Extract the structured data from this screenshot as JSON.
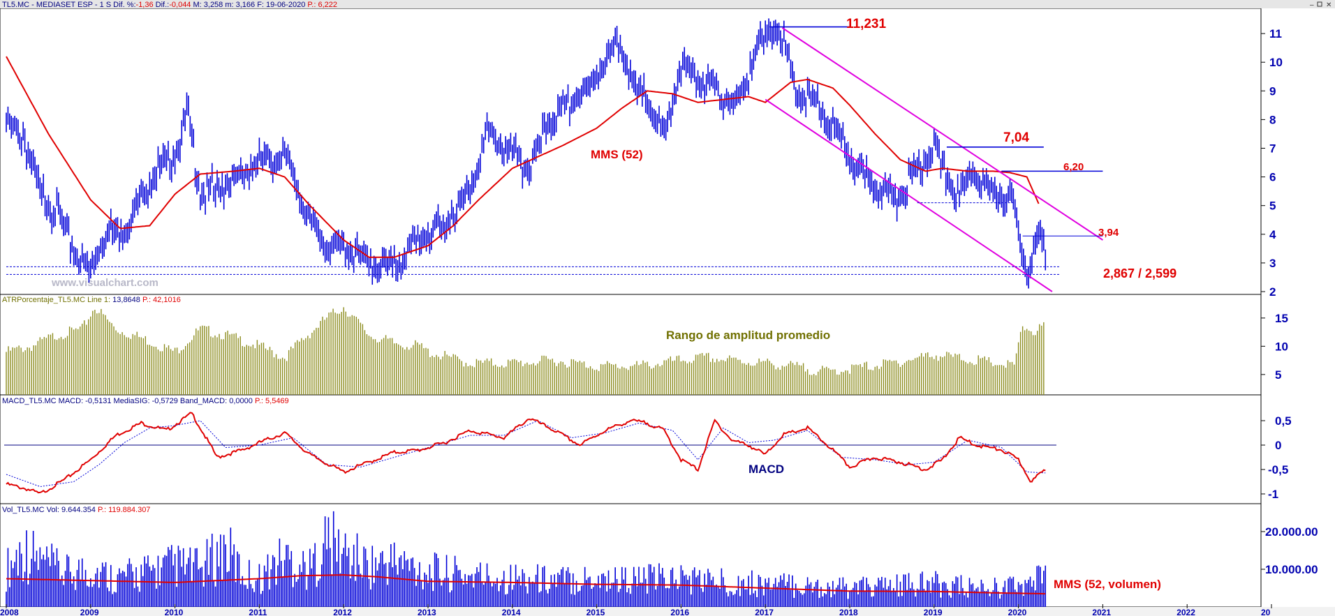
{
  "header": {
    "price": {
      "symbol": "TL5.MC - MEDIASET ESP -  1 S  Dif. %:",
      "dif_pct": "-1,36",
      "dif_label": " Dif.:",
      "dif": "-0,044",
      "rest": " M: 3,258  m: 3,166  F: 19-06-2020 ",
      "p": "P.: 6,222"
    },
    "atr": {
      "label": "ATRPorcentaje_TL5.MC  Line 1:",
      "value": " 13,8648 ",
      "p": "P.: 42,1016"
    },
    "macd": {
      "label": "MACD_TL5.MC  MACD: -0,5131  MediaSIG: -0,5729  Band_MACD: 0,0000 ",
      "p": "P.: 5,5469"
    },
    "vol": {
      "label": "Vol_TL5.MC  Vol: 9.644.354 ",
      "p": "P.: 119.884.307"
    }
  },
  "watermark": "www.visualchart.com",
  "annotations": {
    "high": "11,231",
    "resistance1": "7,04",
    "resistance2": "6,20",
    "resistance3": "3,94",
    "support": "2,867 / 2,599",
    "mms_price": "MMS (52)",
    "atr_title": "Rango de amplitud promedio",
    "macd_title": "MACD",
    "mms_vol": "MMS (52, volumen)"
  },
  "x_axis": {
    "labels": [
      "2008",
      "2009",
      "2010",
      "2011",
      "2012",
      "2013",
      "2014",
      "2015",
      "2016",
      "2017",
      "2018",
      "2019",
      "2020",
      "2021",
      "2022",
      "20"
    ]
  },
  "y_axes": {
    "price": [
      "2",
      "3",
      "4",
      "5",
      "6",
      "7",
      "8",
      "9",
      "10",
      "11"
    ],
    "atr": [
      "5",
      "10",
      "15"
    ],
    "macd": [
      "0,5",
      "0",
      "-0,5",
      "-1"
    ],
    "vol": [
      "10.000.00",
      "20.000.00"
    ]
  },
  "colors": {
    "price": "#0000d8",
    "sma": "#e00000",
    "channel": "#e000e0",
    "atr_bar": "#8c8c1e",
    "atr_fill": "#d6d690",
    "macd": "#e00000",
    "signal": "#0000d8",
    "axis_text": "#0000b0",
    "annotation_red": "#e00000",
    "annotation_olive": "#707000",
    "annotation_navy": "#000080"
  },
  "chart_data": [
    {
      "type": "line",
      "title": "TL5.MC - MEDIASET ESP - 1 S",
      "x_range": [
        2008,
        2023
      ],
      "ylim": [
        2,
        11.5
      ],
      "series": [
        {
          "name": "",
          "x": [
            2008.0,
            2008.2,
            2008.4,
            2008.6,
            2008.8,
            2009.0,
            2009.2,
            2009.4,
            2009.7,
            2010.0,
            2010.15,
            2010.3,
            2010.6,
            2011.0,
            2011.3,
            2011.55,
            2011.8,
            2012.0,
            2012.3,
            2012.6,
            2012.9,
            2013.2,
            2013.5,
            2013.7,
            2014.0,
            2014.2,
            2014.4,
            2014.6,
            2014.9,
            2015.1,
            2015.3,
            2015.45,
            2015.6,
            2015.8,
            2016.0,
            2016.3,
            2016.5,
            2016.7,
            2016.9,
            2017.15,
            2017.25,
            2017.4,
            2017.6,
            2017.8,
            2018.0,
            2018.3,
            2018.6,
            2018.8,
            2019.0,
            2019.15,
            2019.3,
            2019.45,
            2019.6,
            2019.8,
            2019.95,
            2020.0,
            2020.08,
            2020.12,
            2020.2,
            2020.27,
            2020.32
          ],
          "values": [
            7.9,
            7.4,
            5.5,
            4.8,
            3.4,
            2.75,
            4.2,
            4.1,
            5.9,
            6.8,
            8.2,
            5.4,
            5.7,
            6.5,
            6.8,
            4.8,
            3.5,
            3.6,
            3.0,
            2.85,
            3.9,
            4.3,
            5.6,
            7.5,
            6.8,
            6.3,
            7.7,
            8.4,
            9.0,
            10.2,
            10.6,
            9.0,
            8.7,
            7.4,
            9.9,
            9.2,
            8.8,
            8.6,
            10.6,
            11.23,
            10.3,
            8.7,
            8.6,
            7.7,
            6.7,
            5.6,
            5.3,
            6.4,
            7.04,
            6.0,
            5.3,
            6.2,
            5.7,
            5.2,
            5.0,
            4.1,
            3.0,
            2.7,
            3.6,
            3.94,
            3.25
          ]
        },
        {
          "name": "MMS (52)",
          "x": [
            2008.0,
            2008.5,
            2009.0,
            2009.35,
            2009.7,
            2010.0,
            2010.3,
            2010.7,
            2011.0,
            2011.3,
            2011.6,
            2012.0,
            2012.3,
            2012.6,
            2013.0,
            2013.3,
            2013.6,
            2014.0,
            2014.3,
            2014.6,
            2015.0,
            2015.3,
            2015.6,
            2015.9,
            2016.2,
            2016.5,
            2016.8,
            2017.0,
            2017.3,
            2017.5,
            2017.8,
            2018.0,
            2018.3,
            2018.6,
            2018.9,
            2019.1,
            2019.4,
            2019.7,
            2019.9,
            2020.1,
            2020.25
          ],
          "values": [
            10.2,
            7.5,
            5.2,
            4.2,
            4.3,
            5.4,
            6.1,
            6.2,
            6.3,
            6.0,
            5.0,
            3.8,
            3.2,
            3.2,
            3.6,
            4.3,
            5.2,
            6.3,
            6.7,
            7.1,
            7.7,
            8.4,
            9.0,
            8.9,
            8.6,
            8.7,
            8.8,
            8.6,
            9.3,
            9.4,
            9.1,
            8.5,
            7.5,
            6.6,
            6.2,
            6.3,
            6.2,
            6.2,
            6.15,
            6.0,
            5.0
          ]
        }
      ],
      "lines": [
        {
          "name": "11,231",
          "value": 11.231,
          "x": [
            2017.05,
            2018.0
          ]
        },
        {
          "name": "7,04",
          "value": 7.04,
          "x": [
            2019.15,
            2020.3
          ]
        },
        {
          "name": "6,20",
          "value": 6.2,
          "x": [
            2019.8,
            2021.0
          ]
        },
        {
          "name": "3,94",
          "value": 3.94,
          "x": [
            2020.05,
            2021.0
          ]
        },
        {
          "name": "2,867",
          "value": 2.867,
          "x": [
            2008.0,
            2020.5
          ]
        },
        {
          "name": "2,599",
          "value": 2.599,
          "x": [
            2008.0,
            2020.5
          ]
        },
        {
          "name": "5,1",
          "value": 5.1,
          "x": [
            2018.8,
            2019.95
          ]
        }
      ],
      "channel": [
        {
          "x": [
            2017.2,
            2021.0
          ],
          "values": [
            11.2,
            3.8
          ]
        },
        {
          "x": [
            2017.0,
            2020.4
          ],
          "values": [
            8.7,
            2.0
          ]
        }
      ]
    },
    {
      "type": "bar",
      "title": "ATRPorcentaje_TL5.MC",
      "ylim": [
        3,
        18
      ],
      "series": [
        {
          "name": "ATRPorcentaje_TL5.MC",
          "x": [
            2008.0,
            2008.3,
            2008.6,
            2008.9,
            2009.05,
            2009.3,
            2009.6,
            2010.0,
            2010.3,
            2010.6,
            2011.0,
            2011.3,
            2011.5,
            2011.8,
            2012.0,
            2012.3,
            2012.6,
            2012.9,
            2013.0,
            2013.5,
            2014.0,
            2014.5,
            2015.0,
            2015.5,
            2016.0,
            2016.3,
            2016.6,
            2017.0,
            2017.3,
            2017.7,
            2018.0,
            2018.5,
            2019.0,
            2019.5,
            2019.95,
            2020.05,
            2020.2,
            2020.32
          ],
          "values": [
            9,
            10,
            12,
            13,
            17,
            13,
            11.5,
            9,
            13,
            12,
            10,
            8,
            11,
            15,
            17,
            12,
            10.5,
            10,
            9,
            7,
            7,
            7.5,
            6.5,
            6.5,
            7.5,
            8,
            7.5,
            7,
            6.5,
            5.5,
            6,
            7,
            8.5,
            7.5,
            6.5,
            13.5,
            12.5,
            14
          ]
        }
      ]
    },
    {
      "type": "line",
      "title": "MACD_TL5.MC",
      "ylim": [
        -1.1,
        0.75
      ],
      "series": [
        {
          "name": "MACD",
          "x": [
            2008.0,
            2008.25,
            2008.4,
            2008.7,
            2009.0,
            2009.3,
            2009.6,
            2009.9,
            2010.2,
            2010.5,
            2010.8,
            2011.0,
            2011.3,
            2011.6,
            2012.0,
            2012.3,
            2012.6,
            2012.9,
            2013.2,
            2013.5,
            2013.9,
            2014.2,
            2014.5,
            2014.8,
            2015.1,
            2015.4,
            2015.6,
            2015.8,
            2016.0,
            2016.2,
            2016.4,
            2016.6,
            2016.8,
            2017.0,
            2017.2,
            2017.5,
            2017.8,
            2018.0,
            2018.3,
            2018.6,
            2018.9,
            2019.1,
            2019.3,
            2019.5,
            2019.8,
            2020.0,
            2020.15,
            2020.32
          ],
          "values": [
            -0.8,
            -0.9,
            -1.0,
            -0.7,
            -0.3,
            0.2,
            0.45,
            0.3,
            0.65,
            -0.25,
            -0.1,
            0.05,
            0.25,
            -0.2,
            -0.55,
            -0.35,
            -0.15,
            -0.1,
            0.05,
            0.3,
            0.15,
            0.55,
            0.3,
            0.0,
            0.3,
            0.5,
            0.45,
            0.3,
            -0.3,
            -0.5,
            0.5,
            0.1,
            0.0,
            -0.2,
            0.2,
            0.35,
            -0.1,
            -0.45,
            -0.25,
            -0.35,
            -0.5,
            -0.3,
            0.15,
            0.0,
            -0.1,
            -0.3,
            -0.75,
            -0.5
          ]
        },
        {
          "name": "MediaSIG",
          "x": [
            2008.0,
            2008.4,
            2008.8,
            2009.1,
            2009.4,
            2009.7,
            2010.0,
            2010.3,
            2010.6,
            2011.0,
            2011.4,
            2011.8,
            2012.2,
            2012.6,
            2013.0,
            2013.5,
            2013.9,
            2014.3,
            2014.7,
            2015.1,
            2015.5,
            2015.9,
            2016.2,
            2016.5,
            2016.8,
            2017.1,
            2017.5,
            2017.9,
            2018.3,
            2018.7,
            2019.0,
            2019.4,
            2019.8,
            2020.1,
            2020.32
          ],
          "values": [
            -0.6,
            -0.85,
            -0.75,
            -0.4,
            0.05,
            0.35,
            0.4,
            0.5,
            -0.05,
            0.0,
            0.15,
            -0.4,
            -0.45,
            -0.25,
            -0.05,
            0.2,
            0.2,
            0.5,
            0.15,
            0.25,
            0.45,
            0.3,
            -0.3,
            0.35,
            0.05,
            0.1,
            0.3,
            -0.25,
            -0.3,
            -0.4,
            -0.35,
            0.1,
            -0.05,
            -0.55,
            -0.57
          ]
        }
      ],
      "lines": [
        {
          "name": "Band_MACD",
          "value": 0
        }
      ]
    },
    {
      "type": "bar",
      "title": "Vol_TL5.MC",
      "ylim": [
        0,
        25000000
      ],
      "series": [
        {
          "name": "Vol",
          "x": [
            2008.0,
            2008.2,
            2008.4,
            2008.7,
            2009.0,
            2009.3,
            2009.6,
            2010.0,
            2010.3,
            2010.6,
            2010.8,
            2011.0,
            2011.3,
            2011.6,
            2011.8,
            2012.0,
            2012.3,
            2012.6,
            2013.0,
            2013.5,
            2014.0,
            2014.5,
            2015.0,
            2015.5,
            2016.0,
            2016.5,
            2017.0,
            2017.5,
            2018.0,
            2018.5,
            2019.0,
            2019.5,
            2020.0,
            2020.2,
            2020.32
          ],
          "values": [
            9000000,
            14000000,
            11000000,
            8000000,
            9000000,
            7000000,
            8000000,
            10000000,
            9000000,
            14000000,
            8000000,
            7000000,
            12000000,
            9000000,
            16000000,
            13000000,
            10000000,
            11000000,
            8500000,
            7500000,
            7000000,
            6500000,
            7000000,
            6500000,
            7000000,
            6000000,
            5500000,
            5000000,
            4500000,
            5000000,
            5500000,
            4500000,
            5000000,
            6000000,
            9644354
          ]
        },
        {
          "name": "MMS (52, volumen)",
          "x": [
            2008.0,
            2009.0,
            2010.0,
            2011.0,
            2011.5,
            2012.0,
            2012.4,
            2013.0,
            2014.0,
            2015.0,
            2016.0,
            2017.0,
            2018.0,
            2019.0,
            2019.8,
            2020.32
          ],
          "values": [
            7500000,
            7000000,
            6500000,
            7500000,
            8300000,
            8500000,
            8000000,
            6800000,
            6500000,
            6000000,
            5800000,
            5000000,
            4200000,
            4100000,
            3700000,
            3500000
          ]
        }
      ]
    }
  ]
}
